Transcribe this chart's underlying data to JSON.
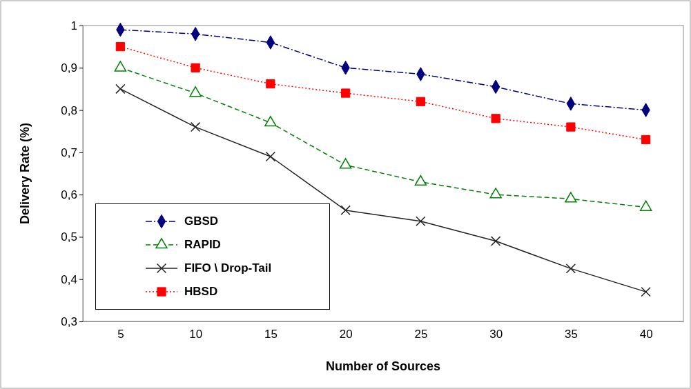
{
  "chart_data": {
    "type": "line",
    "xlabel": "Number of Sources",
    "ylabel": "Delivery Rate (%)",
    "categories": [
      "5",
      "10",
      "15",
      "20",
      "25",
      "30",
      "35",
      "40"
    ],
    "ylim": [
      0.3,
      1
    ],
    "yticks": [
      {
        "value": 0.3,
        "label": "0,3"
      },
      {
        "value": 0.4,
        "label": "0,4"
      },
      {
        "value": 0.5,
        "label": "0,5"
      },
      {
        "value": 0.6,
        "label": "0,6"
      },
      {
        "value": 0.7,
        "label": "0,7"
      },
      {
        "value": 0.8,
        "label": "0,8"
      },
      {
        "value": 0.9,
        "label": "0,9"
      },
      1
    ],
    "legend": "bottom left",
    "series": [
      {
        "name": "GBSD",
        "color": "#000080",
        "marker": "diamond",
        "line_style": "dashdot",
        "values": [
          0.99,
          0.98,
          0.96,
          0.9,
          0.885,
          0.855,
          0.815,
          0.8
        ]
      },
      {
        "name": "RAPID",
        "color": "#008000",
        "marker": "triangle",
        "line_style": "dashed",
        "values": [
          0.9,
          0.84,
          0.77,
          0.67,
          0.63,
          0.6,
          0.59,
          0.57
        ]
      },
      {
        "name": "FIFO \\ Drop-Tail",
        "color": "#222222",
        "marker": "cross",
        "line_style": "solid",
        "values": [
          0.85,
          0.76,
          0.69,
          0.563,
          0.537,
          0.49,
          0.425,
          0.37
        ]
      },
      {
        "name": "HBSD",
        "color": "#ff0000",
        "marker": "square",
        "line_style": "dotted",
        "values": [
          0.95,
          0.9,
          0.862,
          0.84,
          0.82,
          0.78,
          0.76,
          0.73
        ]
      }
    ]
  }
}
